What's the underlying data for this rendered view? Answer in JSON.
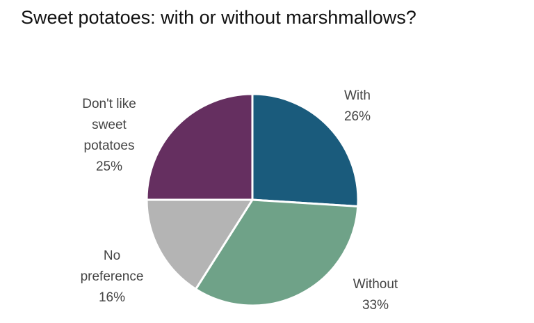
{
  "chart_data": {
    "type": "pie",
    "title": "Sweet potatoes: with or without marshmallows?",
    "slices": [
      {
        "name": "With",
        "value": 26,
        "value_label": "26%",
        "color": "#1a5b7c",
        "label_lines": [
          "With",
          "26%"
        ]
      },
      {
        "name": "Without",
        "value": 33,
        "value_label": "33%",
        "color": "#6fa288",
        "label_lines": [
          "Without",
          "33%"
        ]
      },
      {
        "name": "No preference",
        "value": 16,
        "value_label": "16%",
        "color": "#b4b4b4",
        "label_lines": [
          "No",
          "preference",
          "16%"
        ]
      },
      {
        "name": "Don't like sweet potatoes",
        "value": 25,
        "value_label": "25%",
        "color": "#652f60",
        "label_lines": [
          "Don't like",
          "sweet",
          "potatoes",
          "25%"
        ]
      }
    ],
    "start": "12 o'clock",
    "direction": "clockwise",
    "legend": "none",
    "data_labels": "outside"
  }
}
